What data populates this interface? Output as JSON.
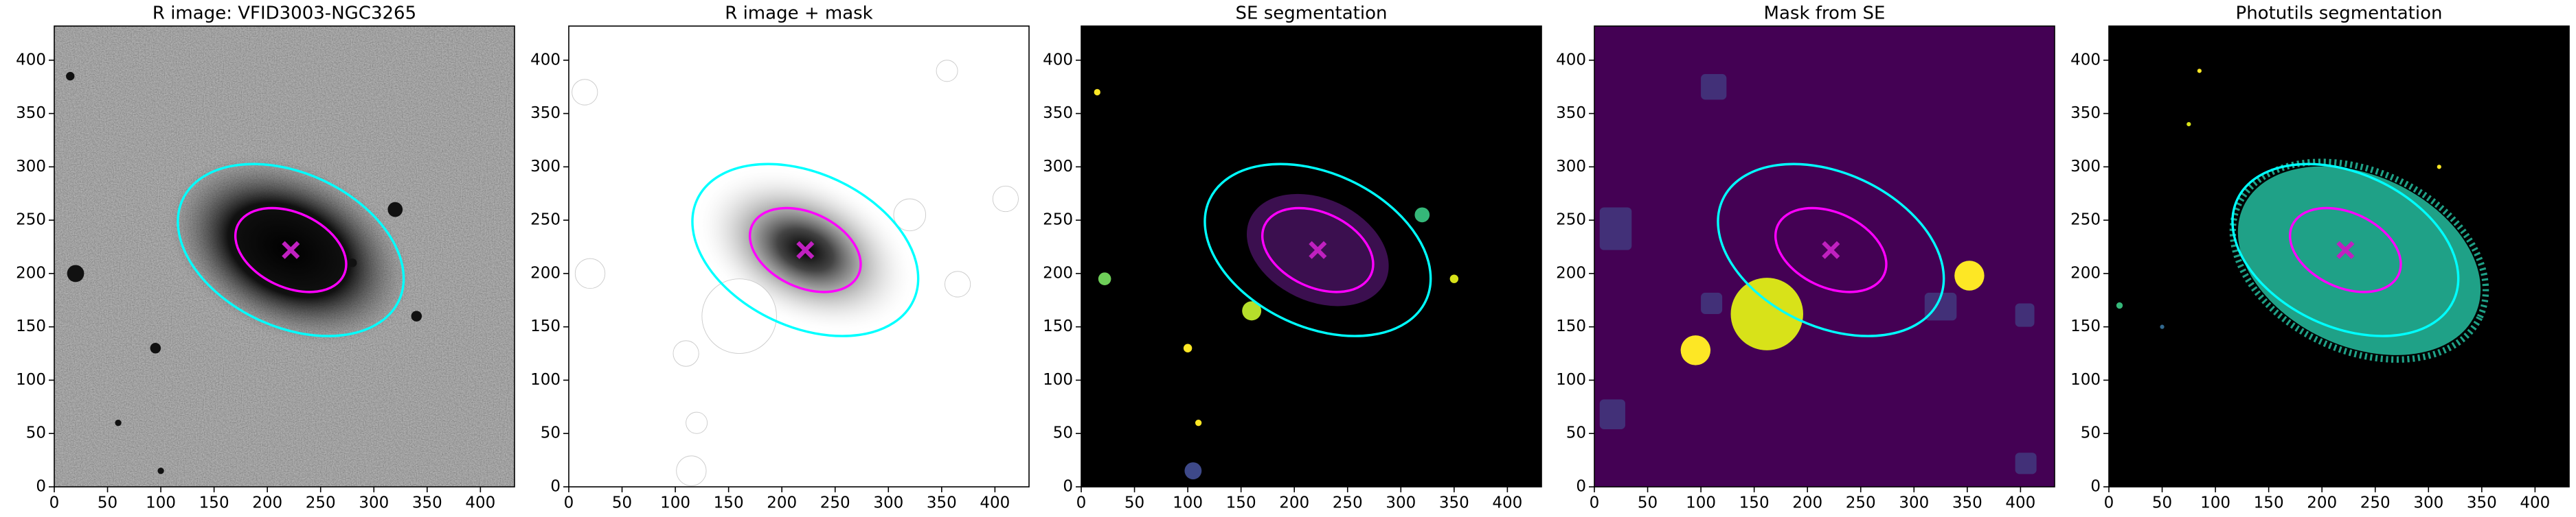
{
  "chart_data": [
    {
      "type": "image",
      "title": "R image: VFID3003-NGC3265",
      "xlim": [
        0,
        432
      ],
      "ylim": [
        0,
        432
      ],
      "xticks": [
        0,
        50,
        100,
        150,
        200,
        250,
        300,
        350,
        400
      ],
      "yticks": [
        0,
        50,
        100,
        150,
        200,
        250,
        300,
        350,
        400
      ]
    },
    {
      "type": "image",
      "title": "R image + mask",
      "xlim": [
        0,
        432
      ],
      "ylim": [
        0,
        432
      ],
      "xticks": [
        0,
        50,
        100,
        150,
        200,
        250,
        300,
        350,
        400
      ],
      "yticks": [
        0,
        50,
        100,
        150,
        200,
        250,
        300,
        350,
        400
      ]
    },
    {
      "type": "image",
      "title": "SE segmentation",
      "xlim": [
        0,
        432
      ],
      "ylim": [
        0,
        432
      ],
      "xticks": [
        0,
        50,
        100,
        150,
        200,
        250,
        300,
        350,
        400
      ],
      "yticks": [
        0,
        50,
        100,
        150,
        200,
        250,
        300,
        350,
        400
      ]
    },
    {
      "type": "image",
      "title": "Mask from SE",
      "xlim": [
        0,
        432
      ],
      "ylim": [
        0,
        432
      ],
      "xticks": [
        0,
        50,
        100,
        150,
        200,
        250,
        300,
        350,
        400
      ],
      "yticks": [
        0,
        50,
        100,
        150,
        200,
        250,
        300,
        350,
        400
      ]
    },
    {
      "type": "image",
      "title": "Photutils segmentation",
      "xlim": [
        0,
        432
      ],
      "ylim": [
        0,
        432
      ],
      "xticks": [
        0,
        50,
        100,
        150,
        200,
        250,
        300,
        350,
        400
      ],
      "yticks": [
        0,
        50,
        100,
        150,
        200,
        250,
        300,
        350,
        400
      ]
    }
  ]
}
